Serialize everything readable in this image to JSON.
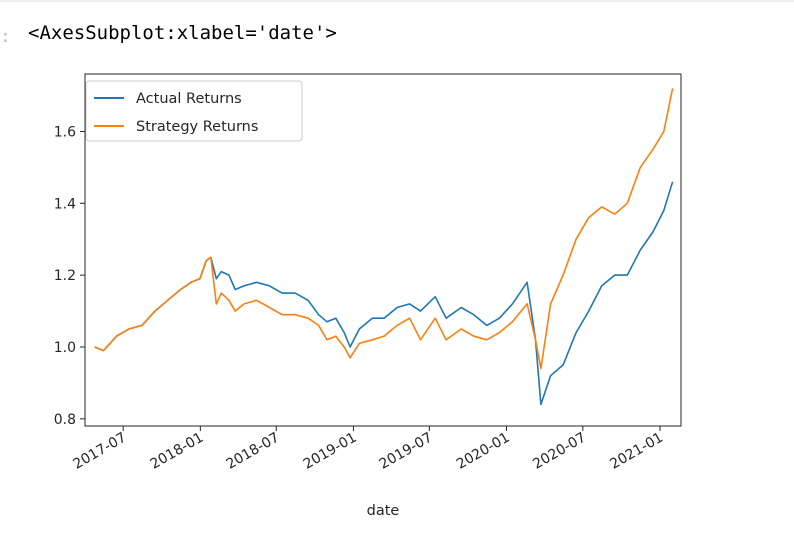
{
  "cell": {
    "prompt": ":",
    "output_text": "<AxesSubplot:xlabel='date'>"
  },
  "chart_data": {
    "type": "line",
    "title": "",
    "xlabel": "date",
    "ylabel": "",
    "xlim": [
      "2017-04-01",
      "2021-02-20"
    ],
    "ylim": [
      0.78,
      1.76
    ],
    "x_ticks": [
      "2017-07",
      "2018-01",
      "2018-07",
      "2019-01",
      "2019-07",
      "2020-01",
      "2020-07",
      "2021-01"
    ],
    "y_ticks": [
      "0.8",
      "1.0",
      "1.2",
      "1.4",
      "1.6"
    ],
    "grid": false,
    "legend": "top-left",
    "series": [
      {
        "name": "Actual Returns",
        "color": "#1f77b4",
        "points": [
          [
            "2017-04-24",
            1.0
          ],
          [
            "2017-05-15",
            0.99
          ],
          [
            "2017-06-15",
            1.03
          ],
          [
            "2017-07-15",
            1.05
          ],
          [
            "2017-08-15",
            1.06
          ],
          [
            "2017-09-15",
            1.1
          ],
          [
            "2017-10-15",
            1.13
          ],
          [
            "2017-11-15",
            1.16
          ],
          [
            "2017-12-10",
            1.18
          ],
          [
            "2017-12-31",
            1.19
          ],
          [
            "2018-01-15",
            1.24
          ],
          [
            "2018-01-26",
            1.25
          ],
          [
            "2018-02-08",
            1.19
          ],
          [
            "2018-02-20",
            1.21
          ],
          [
            "2018-03-10",
            1.2
          ],
          [
            "2018-03-25",
            1.16
          ],
          [
            "2018-04-15",
            1.17
          ],
          [
            "2018-05-15",
            1.18
          ],
          [
            "2018-06-15",
            1.17
          ],
          [
            "2018-07-15",
            1.15
          ],
          [
            "2018-08-15",
            1.15
          ],
          [
            "2018-09-15",
            1.13
          ],
          [
            "2018-10-10",
            1.09
          ],
          [
            "2018-10-30",
            1.07
          ],
          [
            "2018-11-20",
            1.08
          ],
          [
            "2018-12-10",
            1.04
          ],
          [
            "2018-12-24",
            1.0
          ],
          [
            "2019-01-15",
            1.05
          ],
          [
            "2019-02-15",
            1.08
          ],
          [
            "2019-03-15",
            1.08
          ],
          [
            "2019-04-15",
            1.11
          ],
          [
            "2019-05-15",
            1.12
          ],
          [
            "2019-06-10",
            1.1
          ],
          [
            "2019-07-15",
            1.14
          ],
          [
            "2019-08-10",
            1.08
          ],
          [
            "2019-09-15",
            1.11
          ],
          [
            "2019-10-15",
            1.09
          ],
          [
            "2019-11-15",
            1.06
          ],
          [
            "2019-12-15",
            1.08
          ],
          [
            "2020-01-15",
            1.12
          ],
          [
            "2020-02-19",
            1.18
          ],
          [
            "2020-03-10",
            1.02
          ],
          [
            "2020-03-23",
            0.84
          ],
          [
            "2020-04-15",
            0.92
          ],
          [
            "2020-05-15",
            0.95
          ],
          [
            "2020-06-15",
            1.04
          ],
          [
            "2020-07-15",
            1.1
          ],
          [
            "2020-08-15",
            1.17
          ],
          [
            "2020-09-15",
            1.2
          ],
          [
            "2020-10-15",
            1.2
          ],
          [
            "2020-11-15",
            1.27
          ],
          [
            "2020-12-15",
            1.32
          ],
          [
            "2021-01-10",
            1.38
          ],
          [
            "2021-01-31",
            1.46
          ]
        ]
      },
      {
        "name": "Strategy Returns",
        "color": "#ff7f0e",
        "points": [
          [
            "2017-04-24",
            1.0
          ],
          [
            "2017-05-15",
            0.99
          ],
          [
            "2017-06-15",
            1.03
          ],
          [
            "2017-07-15",
            1.05
          ],
          [
            "2017-08-15",
            1.06
          ],
          [
            "2017-09-15",
            1.1
          ],
          [
            "2017-10-15",
            1.13
          ],
          [
            "2017-11-15",
            1.16
          ],
          [
            "2017-12-10",
            1.18
          ],
          [
            "2017-12-31",
            1.19
          ],
          [
            "2018-01-15",
            1.24
          ],
          [
            "2018-01-26",
            1.25
          ],
          [
            "2018-02-08",
            1.12
          ],
          [
            "2018-02-20",
            1.15
          ],
          [
            "2018-03-10",
            1.13
          ],
          [
            "2018-03-25",
            1.1
          ],
          [
            "2018-04-15",
            1.12
          ],
          [
            "2018-05-15",
            1.13
          ],
          [
            "2018-06-15",
            1.11
          ],
          [
            "2018-07-15",
            1.09
          ],
          [
            "2018-08-15",
            1.09
          ],
          [
            "2018-09-15",
            1.08
          ],
          [
            "2018-10-10",
            1.06
          ],
          [
            "2018-10-30",
            1.02
          ],
          [
            "2018-11-20",
            1.03
          ],
          [
            "2018-12-10",
            1.0
          ],
          [
            "2018-12-24",
            0.97
          ],
          [
            "2019-01-15",
            1.01
          ],
          [
            "2019-02-15",
            1.02
          ],
          [
            "2019-03-15",
            1.03
          ],
          [
            "2019-04-15",
            1.06
          ],
          [
            "2019-05-15",
            1.08
          ],
          [
            "2019-06-10",
            1.02
          ],
          [
            "2019-07-15",
            1.08
          ],
          [
            "2019-08-10",
            1.02
          ],
          [
            "2019-09-15",
            1.05
          ],
          [
            "2019-10-15",
            1.03
          ],
          [
            "2019-11-15",
            1.02
          ],
          [
            "2019-12-15",
            1.04
          ],
          [
            "2020-01-15",
            1.07
          ],
          [
            "2020-02-19",
            1.12
          ],
          [
            "2020-03-10",
            1.02
          ],
          [
            "2020-03-23",
            0.94
          ],
          [
            "2020-04-15",
            1.12
          ],
          [
            "2020-05-15",
            1.2
          ],
          [
            "2020-06-15",
            1.3
          ],
          [
            "2020-07-15",
            1.36
          ],
          [
            "2020-08-15",
            1.39
          ],
          [
            "2020-09-15",
            1.37
          ],
          [
            "2020-10-15",
            1.4
          ],
          [
            "2020-11-15",
            1.5
          ],
          [
            "2020-12-15",
            1.55
          ],
          [
            "2021-01-10",
            1.6
          ],
          [
            "2021-01-31",
            1.72
          ]
        ]
      }
    ]
  }
}
